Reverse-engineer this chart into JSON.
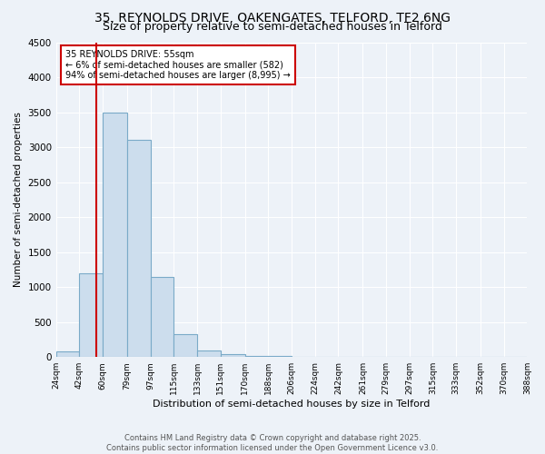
{
  "title": "35, REYNOLDS DRIVE, OAKENGATES, TELFORD, TF2 6NG",
  "subtitle": "Size of property relative to semi-detached houses in Telford",
  "xlabel": "Distribution of semi-detached houses by size in Telford",
  "ylabel": "Number of semi-detached properties",
  "annotation_title": "35 REYNOLDS DRIVE: 55sqm",
  "annotation_line1": "← 6% of semi-detached houses are smaller (582)",
  "annotation_line2": "94% of semi-detached houses are larger (8,995) →",
  "footer_line1": "Contains HM Land Registry data © Crown copyright and database right 2025.",
  "footer_line2": "Contains public sector information licensed under the Open Government Licence v3.0.",
  "bin_edges": [
    24,
    42,
    60,
    79,
    97,
    115,
    133,
    151,
    170,
    188,
    206,
    224,
    242,
    261,
    279,
    297,
    315,
    333,
    352,
    370,
    388
  ],
  "bin_labels": [
    "24sqm",
    "42sqm",
    "60sqm",
    "79sqm",
    "97sqm",
    "115sqm",
    "133sqm",
    "151sqm",
    "170sqm",
    "188sqm",
    "206sqm",
    "224sqm",
    "242sqm",
    "261sqm",
    "279sqm",
    "297sqm",
    "315sqm",
    "333sqm",
    "352sqm",
    "370sqm",
    "388sqm"
  ],
  "bar_heights": [
    80,
    1200,
    3500,
    3100,
    1150,
    330,
    100,
    40,
    20,
    10,
    5,
    3,
    2,
    1,
    1,
    1,
    1,
    1,
    0,
    0
  ],
  "bar_color": "#ccdded",
  "bar_edge_color": "#7aaac8",
  "red_line_x": 55,
  "ylim": [
    0,
    4500
  ],
  "background_color": "#edf2f8",
  "plot_background_color": "#edf2f8",
  "grid_color": "#ffffff",
  "title_fontsize": 10,
  "subtitle_fontsize": 9,
  "annotation_box_color": "#ffffff",
  "annotation_box_edge": "#cc0000",
  "red_line_color": "#cc0000",
  "footer_color": "#555555"
}
